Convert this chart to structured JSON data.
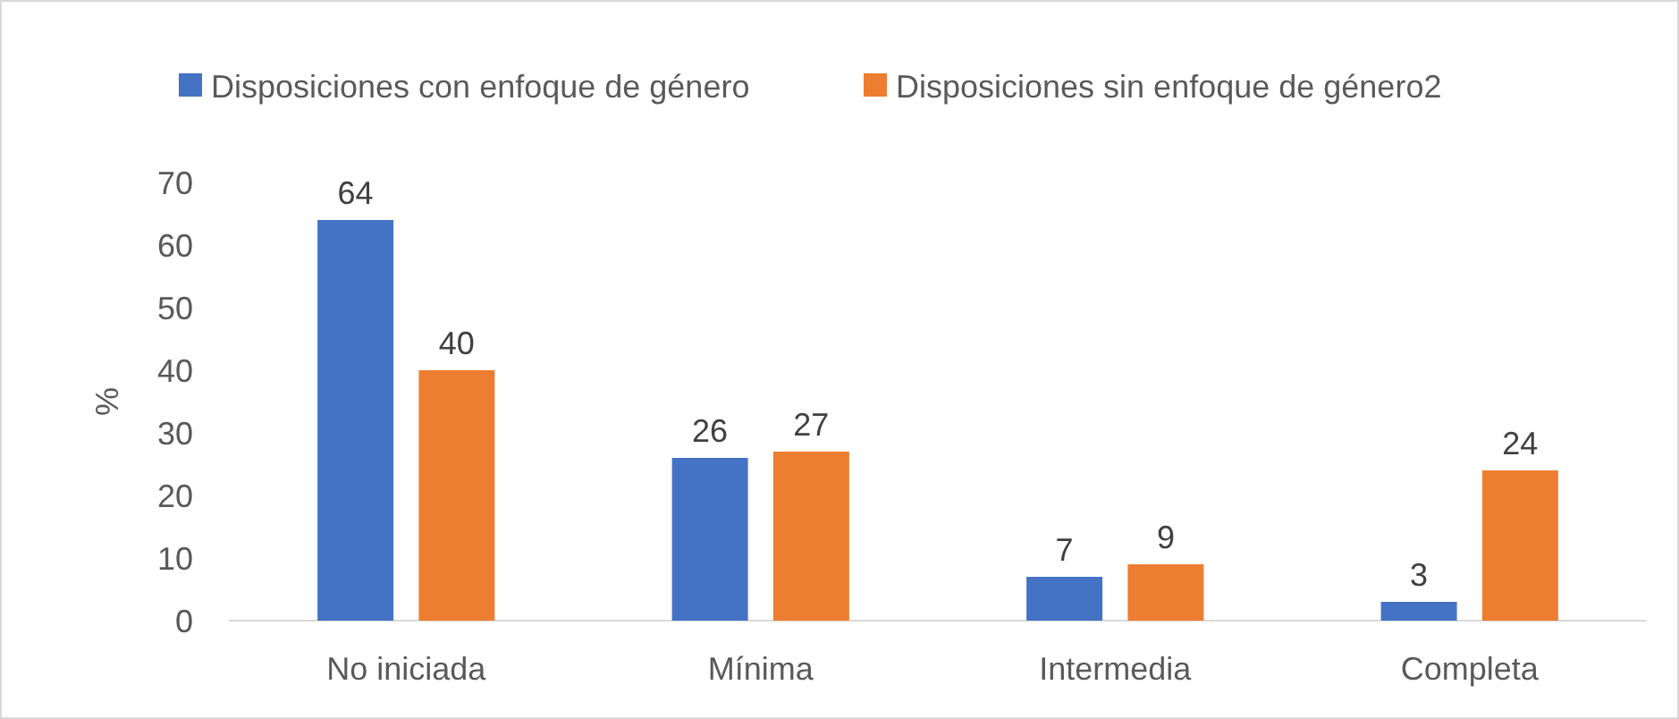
{
  "chart_data": {
    "type": "bar",
    "ylabel": "%",
    "categories": [
      "No iniciada",
      "Mínima",
      "Intermedia",
      "Completa"
    ],
    "series": [
      {
        "name": "Disposiciones con enfoque de género",
        "color": "#4472c4",
        "values": [
          64,
          26,
          7,
          3
        ]
      },
      {
        "name": "Disposiciones sin enfoque de género2",
        "color": "#ed7d31",
        "values": [
          40,
          27,
          9,
          24
        ]
      }
    ],
    "ylim": [
      0,
      70
    ],
    "yticks": [
      0,
      10,
      20,
      30,
      40,
      50,
      60,
      70
    ],
    "data_labels": true,
    "legend": "top",
    "grid": false
  }
}
